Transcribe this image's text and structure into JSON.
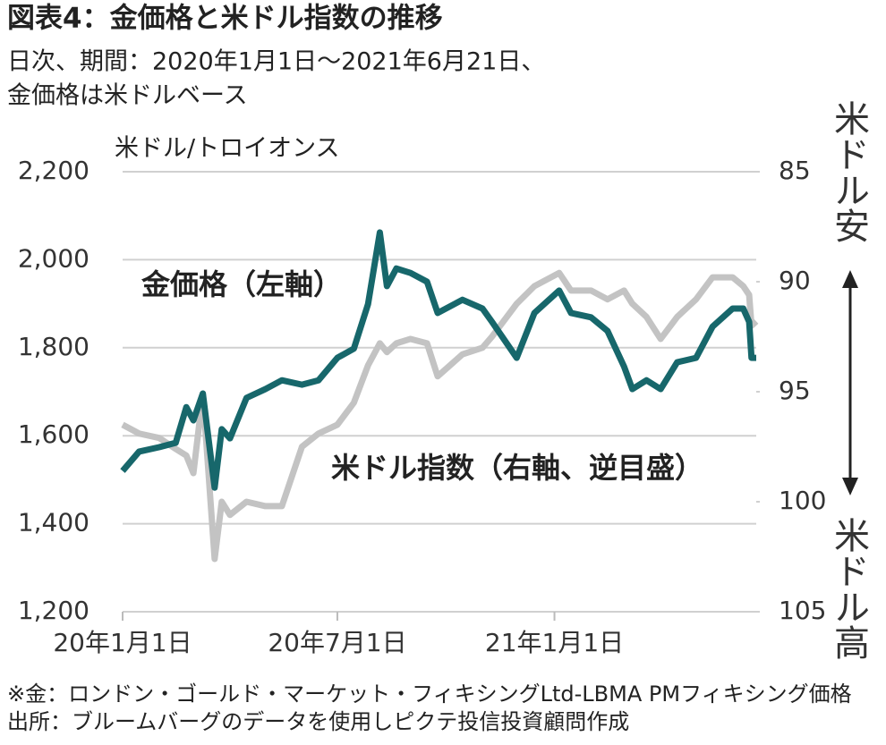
{
  "chart_data": {
    "type": "line",
    "title": "図表4：金価格と米ドル指数の推移",
    "subtitle": [
      "日次、期間：2020年1月1日～2021年6月21日、",
      "金価格は米ドルベース"
    ],
    "ylabel": "米ドル/トロイオンス",
    "y2_top_label": "米ドル安",
    "y2_bottom_label": "米ドル高",
    "notes": [
      "※金：ロンドン・ゴールド・マーケット・フィキシングLtd-LBMA PMフィキシング価格",
      "出所：ブルームバーグのデータを使用しピクテ投信投資顧問作成"
    ],
    "x": [
      "2020-01-01",
      "2020-01-15",
      "2020-02-01",
      "2020-02-15",
      "2020-02-24",
      "2020-03-01",
      "2020-03-09",
      "2020-03-19",
      "2020-03-25",
      "2020-04-01",
      "2020-04-15",
      "2020-05-01",
      "2020-05-15",
      "2020-06-01",
      "2020-06-15",
      "2020-07-01",
      "2020-07-15",
      "2020-07-27",
      "2020-08-06",
      "2020-08-12",
      "2020-08-20",
      "2020-09-01",
      "2020-09-15",
      "2020-09-24",
      "2020-10-15",
      "2020-11-01",
      "2020-11-09",
      "2020-11-30",
      "2020-12-15",
      "2021-01-05",
      "2021-01-15",
      "2021-02-01",
      "2021-02-15",
      "2021-03-01",
      "2021-03-08",
      "2021-03-20",
      "2021-04-01",
      "2021-04-15",
      "2021-05-01",
      "2021-05-15",
      "2021-06-01",
      "2021-06-10",
      "2021-06-15",
      "2021-06-17",
      "2021-06-21"
    ],
    "series": [
      {
        "name": "米ドル指数（右軸、逆目盛）",
        "color": "#c3c3c3",
        "axis": "y2",
        "values": [
          96.5,
          96.9,
          97.1,
          97.6,
          97.9,
          98.7,
          95.1,
          102.6,
          100.0,
          100.6,
          100.0,
          100.2,
          100.2,
          97.5,
          96.9,
          96.5,
          95.5,
          93.8,
          92.8,
          93.2,
          92.8,
          92.6,
          92.8,
          94.3,
          93.3,
          93.0,
          92.5,
          91.0,
          90.2,
          89.6,
          90.4,
          90.4,
          90.8,
          90.4,
          91.0,
          91.6,
          92.6,
          91.6,
          90.8,
          89.8,
          89.8,
          90.2,
          90.6,
          92.0,
          91.8
        ]
      },
      {
        "name": "金価格（左軸）",
        "color": "#17676b",
        "axis": "y",
        "values": [
          1520,
          1564,
          1574,
          1584,
          1665,
          1635,
          1696,
          1482,
          1615,
          1594,
          1686,
          1706,
          1726,
          1716,
          1726,
          1777,
          1798,
          1899,
          2062,
          1940,
          1980,
          1970,
          1950,
          1879,
          1909,
          1889,
          1859,
          1777,
          1879,
          1930,
          1879,
          1869,
          1838,
          1757,
          1706,
          1726,
          1706,
          1767,
          1777,
          1848,
          1889,
          1889,
          1859,
          1777,
          1777
        ]
      }
    ],
    "xlim": [
      "2020-01-01",
      "2021-06-21"
    ],
    "xticks": [
      {
        "value": "2020-01-01",
        "label": "20年1月1日"
      },
      {
        "value": "2020-07-01",
        "label": "20年7月1日"
      },
      {
        "value": "2021-01-01",
        "label": "21年1月1日"
      }
    ],
    "ylim": [
      1200,
      2200
    ],
    "yticks": [
      {
        "value": 1200,
        "label": "1,200"
      },
      {
        "value": 1400,
        "label": "1,400"
      },
      {
        "value": 1600,
        "label": "1,600"
      },
      {
        "value": 1800,
        "label": "1,800"
      },
      {
        "value": 2000,
        "label": "2,000"
      },
      {
        "value": 2200,
        "label": "2,200"
      }
    ],
    "y2lim": [
      105,
      85
    ],
    "y2ticks": [
      85,
      90,
      95,
      100,
      105
    ],
    "grid": true
  }
}
